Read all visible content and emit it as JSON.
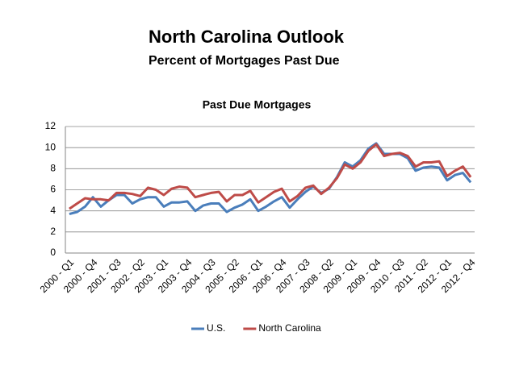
{
  "slide": {
    "title": "North Carolina Outlook",
    "subtitle": "Percent of Mortgages Past Due"
  },
  "chart_data": {
    "type": "line",
    "title": "Past Due Mortgages",
    "categories": [
      "2000 - Q1",
      null,
      null,
      "2000 - Q4",
      null,
      null,
      "2001 - Q3",
      null,
      null,
      "2002 - Q2",
      null,
      null,
      "2003 - Q1",
      null,
      null,
      "2003 - Q4",
      null,
      null,
      "2004 - Q3",
      null,
      null,
      "2005 - Q2",
      null,
      null,
      "2006 - Q1",
      null,
      null,
      "2006 - Q4",
      null,
      null,
      "2007 - Q3",
      null,
      null,
      "2008 - Q2",
      null,
      null,
      "2009 - Q1",
      null,
      null,
      "2009 - Q4",
      null,
      null,
      "2010 - Q3",
      null,
      null,
      "2011 - Q2",
      null,
      null,
      "2012 - Q1",
      null,
      null,
      "2012 - Q4"
    ],
    "series": [
      {
        "name": "U.S.",
        "color": "#4a7ebb",
        "values": [
          3.7,
          3.9,
          4.4,
          5.3,
          4.4,
          5.0,
          5.5,
          5.5,
          4.7,
          5.1,
          5.3,
          5.3,
          4.4,
          4.8,
          4.8,
          4.9,
          4.0,
          4.5,
          4.7,
          4.7,
          3.9,
          4.3,
          4.6,
          5.1,
          4.0,
          4.4,
          4.9,
          5.3,
          4.3,
          5.1,
          5.8,
          6.3,
          5.7,
          6.1,
          7.2,
          8.6,
          8.2,
          8.8,
          9.9,
          10.4,
          9.4,
          9.4,
          9.4,
          9.0,
          7.8,
          8.1,
          8.2,
          8.1,
          6.9,
          7.4,
          7.6,
          6.7
        ]
      },
      {
        "name": "North Carolina",
        "color": "#be4b48",
        "values": [
          4.2,
          4.7,
          5.2,
          5.1,
          5.1,
          5.0,
          5.7,
          5.7,
          5.6,
          5.4,
          6.2,
          6.0,
          5.5,
          6.1,
          6.3,
          6.2,
          5.3,
          5.5,
          5.7,
          5.8,
          4.9,
          5.5,
          5.5,
          5.9,
          4.8,
          5.3,
          5.8,
          6.1,
          4.9,
          5.4,
          6.2,
          6.4,
          5.6,
          6.2,
          7.1,
          8.4,
          8.0,
          8.6,
          9.7,
          10.3,
          9.2,
          9.4,
          9.5,
          9.2,
          8.2,
          8.6,
          8.6,
          8.7,
          7.3,
          7.8,
          8.2,
          7.2
        ]
      }
    ],
    "ylim": [
      0,
      12
    ],
    "yticks": [
      0,
      2,
      4,
      6,
      8,
      10,
      12
    ],
    "grid": true,
    "legend": "bottom"
  }
}
